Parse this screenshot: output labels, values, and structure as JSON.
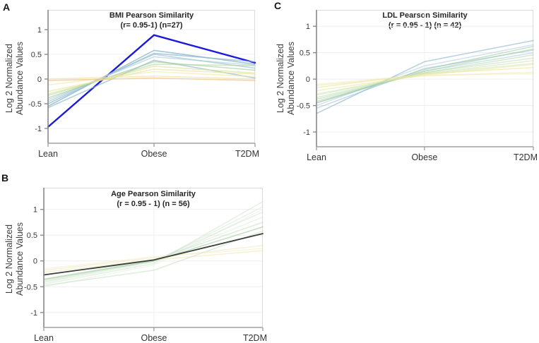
{
  "figure_colors": {
    "background": "#ffffff",
    "highlight_blue": "#1a1ad9",
    "highlight_dark": "#3b403b",
    "axis_gray": "#8c8c8c",
    "grid_gray": "#f3eeee"
  },
  "chart_data": [
    {
      "panel_label": "A",
      "type": "line",
      "title": "BMI Pearson Similarity",
      "subtitle": "(r= 0.95-1) (n=27)",
      "ylabel": "Log 2 Normalized Abundance Values",
      "ylabel_lines": [
        "Log 2 Normalized",
        "Abundance Values"
      ],
      "categories": [
        "Lean",
        "Obese",
        "T2DM"
      ],
      "yticks": [
        1,
        0.5,
        0,
        -0.5,
        -1
      ],
      "ytick_labels": [
        "1",
        "0.5",
        "0",
        "-0.5",
        "-1"
      ],
      "ylim": [
        -1.3,
        1.4
      ],
      "grid": true,
      "legend": "none",
      "series": [
        {
          "name": "highlighted-trace",
          "color": "#1a1ad9",
          "width": 2.4,
          "opacity": 1,
          "values": [
            -0.97,
            0.89,
            0.33
          ]
        },
        {
          "name": "trace-01",
          "color": "#85b3c9",
          "width": 1.6,
          "opacity": 0.75,
          "values": [
            -0.55,
            0.58,
            0.3
          ]
        },
        {
          "name": "trace-02",
          "color": "#8fb9cc",
          "width": 1.6,
          "opacity": 0.7,
          "values": [
            -0.5,
            0.52,
            0.35
          ]
        },
        {
          "name": "trace-03",
          "color": "#9cc2d1",
          "width": 1.6,
          "opacity": 0.65,
          "values": [
            -0.46,
            0.5,
            0.22
          ]
        },
        {
          "name": "trace-04",
          "color": "#7fb0c6",
          "width": 1.6,
          "opacity": 0.6,
          "values": [
            -0.58,
            0.38,
            0.02
          ]
        },
        {
          "name": "trace-05",
          "color": "#a9cbd6",
          "width": 1.6,
          "opacity": 0.6,
          "values": [
            -0.42,
            0.45,
            0.28
          ]
        },
        {
          "name": "trace-06",
          "color": "#9ecf93",
          "width": 1.6,
          "opacity": 0.6,
          "values": [
            -0.38,
            0.35,
            0.18
          ]
        },
        {
          "name": "trace-07",
          "color": "#b2d69e",
          "width": 1.6,
          "opacity": 0.6,
          "values": [
            -0.33,
            0.3,
            0.27
          ]
        },
        {
          "name": "trace-08",
          "color": "#d9e09c",
          "width": 1.6,
          "opacity": 0.6,
          "values": [
            -0.3,
            0.26,
            0.12
          ]
        },
        {
          "name": "trace-09",
          "color": "#eae398",
          "width": 1.6,
          "opacity": 0.65,
          "values": [
            -0.25,
            0.2,
            0.1
          ]
        },
        {
          "name": "trace-10",
          "color": "#f0e7a6",
          "width": 1.6,
          "opacity": 0.6,
          "values": [
            -0.12,
            0.15,
            0.05
          ]
        },
        {
          "name": "trace-11",
          "color": "#f0c484",
          "width": 1.6,
          "opacity": 0.7,
          "values": [
            -0.03,
            0.02,
            -0.03
          ]
        },
        {
          "name": "trace-12",
          "color": "#f4d79c",
          "width": 1.4,
          "opacity": 0.6,
          "values": [
            0.0,
            0.06,
            0.0
          ]
        }
      ]
    },
    {
      "panel_label": "B",
      "type": "line",
      "title": "Age Pearson Similarity",
      "subtitle": "(r = 0.95 - 1) (n = 56)",
      "ylabel": "Log 2 Normalized Abundance Values",
      "ylabel_lines": [
        "Log 2 Normalized",
        "Abundance Values"
      ],
      "categories": [
        "Lean",
        "Obese",
        "T2DM"
      ],
      "yticks": [
        1,
        0.5,
        0,
        -0.5,
        -1
      ],
      "ytick_labels": [
        "1",
        "0.5",
        "0",
        "-0.5",
        "-1"
      ],
      "ylim": [
        -1.29,
        1.42
      ],
      "grid": true,
      "legend": "none",
      "series": [
        {
          "name": "trace-01",
          "color": "#cfe5cf",
          "width": 1.5,
          "opacity": 0.55,
          "values": [
            -0.45,
            -0.05,
            1.15
          ]
        },
        {
          "name": "trace-02",
          "color": "#d5e8d2",
          "width": 1.5,
          "opacity": 0.5,
          "values": [
            -0.42,
            -0.02,
            1.05
          ]
        },
        {
          "name": "trace-03",
          "color": "#e6f0e4",
          "width": 1.5,
          "opacity": 0.55,
          "values": [
            -0.5,
            -0.08,
            1.0
          ]
        },
        {
          "name": "trace-04",
          "color": "#cde4c9",
          "width": 1.5,
          "opacity": 0.5,
          "values": [
            -0.4,
            0.0,
            0.95
          ]
        },
        {
          "name": "trace-05",
          "color": "#d8ead5",
          "width": 1.5,
          "opacity": 0.5,
          "values": [
            -0.38,
            0.0,
            0.85
          ]
        },
        {
          "name": "trace-06",
          "color": "#c4dfc0",
          "width": 1.5,
          "opacity": 0.55,
          "values": [
            -0.35,
            0.02,
            0.75
          ]
        },
        {
          "name": "trace-07",
          "color": "#9fcc9f",
          "width": 1.5,
          "opacity": 0.6,
          "values": [
            -0.36,
            0.0,
            0.66
          ]
        },
        {
          "name": "trace-08",
          "color": "#bedcba",
          "width": 1.5,
          "opacity": 0.5,
          "values": [
            -0.48,
            -0.18,
            0.58
          ]
        },
        {
          "name": "trace-09",
          "color": "#efe9c0",
          "width": 1.5,
          "opacity": 0.6,
          "values": [
            -0.18,
            0.06,
            0.3
          ]
        },
        {
          "name": "trace-10",
          "color": "#f2ecc6",
          "width": 1.5,
          "opacity": 0.55,
          "values": [
            -0.15,
            0.08,
            0.24
          ]
        },
        {
          "name": "trace-11",
          "color": "#ece5b2",
          "width": 1.5,
          "opacity": 0.55,
          "values": [
            -0.22,
            0.02,
            0.2
          ]
        },
        {
          "name": "highlighted-trace",
          "color": "#3b403b",
          "width": 1.8,
          "opacity": 1,
          "values": [
            -0.27,
            0.02,
            0.53
          ]
        }
      ]
    },
    {
      "panel_label": "C",
      "type": "line",
      "title": "LDL Pearson Similarity",
      "subtitle": "(r = 0.95 - 1) (n = 42)",
      "ylabel": "Log 2 Normalized Abundance Values",
      "ylabel_lines": [
        "Log 2 Normalized",
        "Abundance Values"
      ],
      "categories": [
        "Lean",
        "Obese",
        "T2DM"
      ],
      "yticks": [
        1,
        0.5,
        0,
        -0.5,
        -1
      ],
      "ytick_labels": [
        "1",
        "0.5",
        "0",
        "-0.5",
        "-1"
      ],
      "ylim": [
        -1.28,
        1.31
      ],
      "grid": true,
      "legend": "none",
      "series": [
        {
          "name": "trace-01",
          "color": "#85b3c9",
          "width": 1.5,
          "opacity": 0.6,
          "values": [
            -0.65,
            0.33,
            0.73
          ]
        },
        {
          "name": "trace-02",
          "color": "#93bccd",
          "width": 1.5,
          "opacity": 0.55,
          "values": [
            -0.55,
            0.2,
            0.55
          ]
        },
        {
          "name": "trace-03",
          "color": "#9cc0ce",
          "width": 1.5,
          "opacity": 0.45,
          "values": [
            -0.5,
            0.25,
            0.65
          ]
        },
        {
          "name": "trace-04",
          "color": "#a2c6d3",
          "width": 1.5,
          "opacity": 0.5,
          "values": [
            -0.45,
            0.15,
            0.5
          ]
        },
        {
          "name": "trace-05",
          "color": "#8fc49b",
          "width": 1.5,
          "opacity": 0.5,
          "values": [
            -0.45,
            0.18,
            0.62
          ]
        },
        {
          "name": "trace-06",
          "color": "#9ecf93",
          "width": 1.5,
          "opacity": 0.5,
          "values": [
            -0.42,
            0.15,
            0.57
          ]
        },
        {
          "name": "trace-07",
          "color": "#aad4a0",
          "width": 1.5,
          "opacity": 0.5,
          "values": [
            -0.38,
            0.12,
            0.46
          ]
        },
        {
          "name": "trace-08",
          "color": "#b8daa8",
          "width": 1.5,
          "opacity": 0.5,
          "values": [
            -0.35,
            0.12,
            0.4
          ]
        },
        {
          "name": "trace-09",
          "color": "#c4dfae",
          "width": 1.5,
          "opacity": 0.5,
          "values": [
            -0.3,
            0.1,
            0.35
          ]
        },
        {
          "name": "trace-10",
          "color": "#d4e5a8",
          "width": 1.5,
          "opacity": 0.5,
          "values": [
            -0.28,
            0.1,
            0.3
          ]
        },
        {
          "name": "trace-11",
          "color": "#e4e6a0",
          "width": 1.5,
          "opacity": 0.55,
          "values": [
            -0.22,
            0.08,
            0.28
          ]
        },
        {
          "name": "trace-12",
          "color": "#ede59a",
          "width": 1.5,
          "opacity": 0.6,
          "values": [
            -0.16,
            0.1,
            0.22
          ]
        },
        {
          "name": "trace-13",
          "color": "#f0e8a8",
          "width": 1.5,
          "opacity": 0.55,
          "values": [
            -0.12,
            0.06,
            0.13
          ]
        },
        {
          "name": "trace-14",
          "color": "#f2e9b2",
          "width": 1.5,
          "opacity": 0.5,
          "values": [
            -0.1,
            0.08,
            0.1
          ]
        }
      ]
    }
  ]
}
